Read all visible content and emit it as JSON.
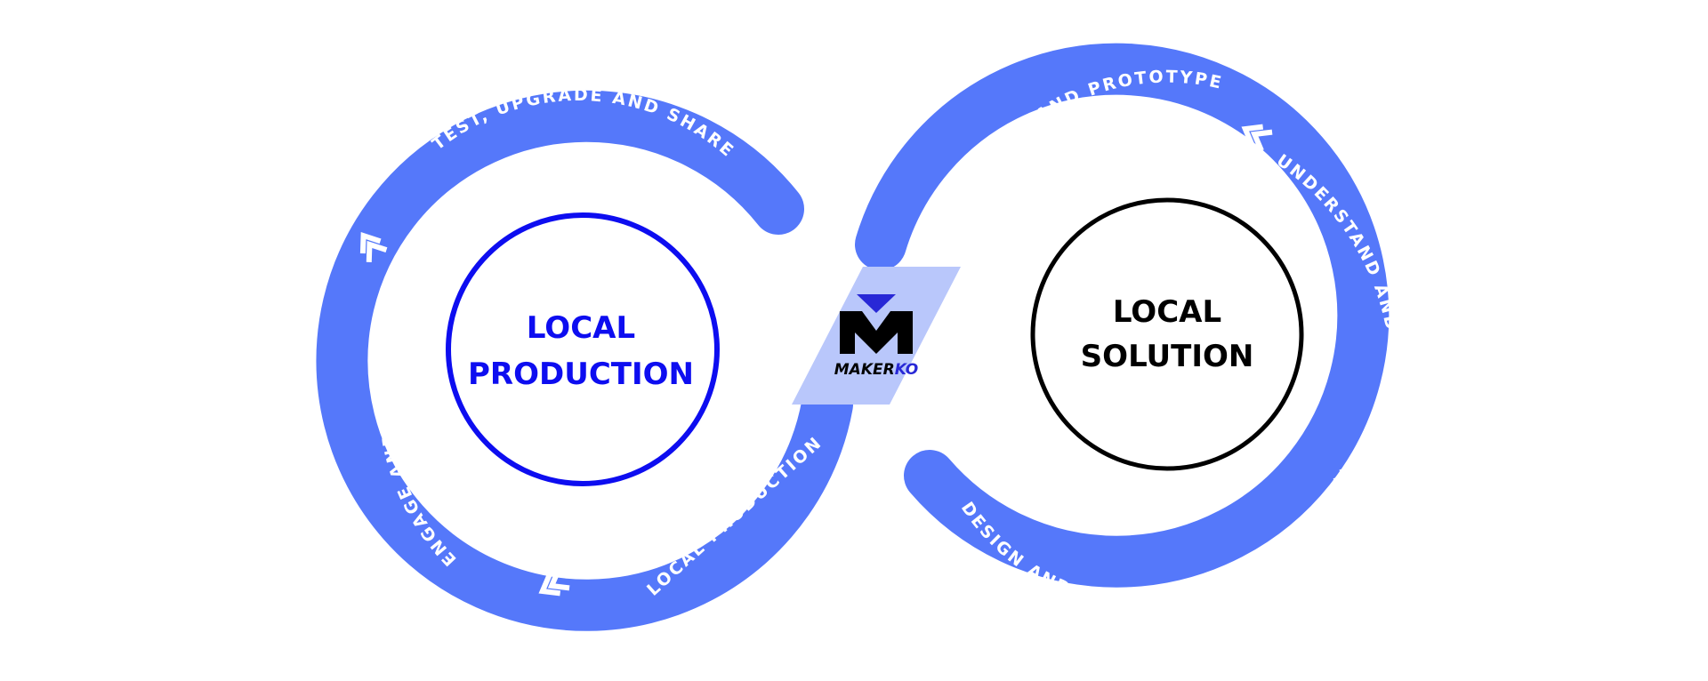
{
  "colors": {
    "band": "#5578fa",
    "crossover": "#b9c7fb",
    "left_circle": "#0d0df0",
    "right_circle": "#000000",
    "logo_blue": "#2828d6",
    "background": "#ffffff"
  },
  "left_core": {
    "line1": "LOCAL",
    "line2": "PRODUCTION"
  },
  "right_core": {
    "line1": "LOCAL",
    "line2": "SOLUTION"
  },
  "band_labels": {
    "test_upgrade_share": "TEST, UPGRADE AND SHARE",
    "engage_explore": "ENGAGE AND EXPLORE",
    "local_production": "LOCAL PRODUCTION",
    "design_prototype": "DESIGN AND PROTOTYPE",
    "understand_ideate": "UNDERSTAND AND IDEATE",
    "design_innovation": "DESIGN AND INNOVATION CHALLENGE"
  },
  "logo": {
    "part1": "MAKER",
    "part2": "KO",
    "icon": "makerko-m-logo"
  },
  "icons": [
    "chevron-arrow-icon"
  ]
}
